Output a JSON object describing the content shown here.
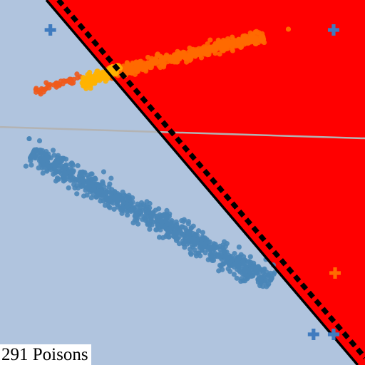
{
  "caption": "291 Poisons",
  "chart_data": {
    "type": "scatter",
    "title": "",
    "xlabel": "",
    "ylabel": "",
    "xlim": [
      0,
      1
    ],
    "ylim": [
      0,
      1
    ],
    "grid": false,
    "legend": "none",
    "regions": [
      {
        "name": "class-0-region",
        "color": "#b0c4de"
      },
      {
        "name": "class-1-region",
        "color": "#ff0000"
      }
    ],
    "decision_boundaries": [
      {
        "name": "clean-boundary",
        "style": "solid",
        "color": "#000000",
        "points": [
          [
            0.127,
            1.0
          ],
          [
            0.98,
            0.0
          ]
        ]
      },
      {
        "name": "poisoned-boundary",
        "style": "dashed",
        "color": "#000000",
        "points": [
          [
            0.16,
            1.0
          ],
          [
            1.0,
            0.02
          ]
        ]
      },
      {
        "name": "reference-line",
        "style": "solid",
        "color": "#b3b3b3",
        "points": [
          [
            0.0,
            0.652
          ],
          [
            1.0,
            0.621
          ]
        ]
      }
    ],
    "clusters": [
      {
        "name": "blue-cluster",
        "color": "#4a86b8",
        "count": 900,
        "from": [
          0.09,
          0.58
        ],
        "to": [
          0.74,
          0.23
        ],
        "spread": 0.022,
        "extra": [
          [
            0.08,
            0.62
          ],
          [
            0.1,
            0.59
          ]
        ]
      },
      {
        "name": "orange-cluster",
        "color": "#ff6a00",
        "count": 450,
        "from": [
          0.3,
          0.8
        ],
        "to": [
          0.72,
          0.9
        ],
        "spread": 0.012,
        "extra": [
          [
            0.79,
            0.92
          ],
          [
            0.7,
            0.88
          ]
        ]
      },
      {
        "name": "poison-orange-tail",
        "color": "#f05a1c",
        "count": 45,
        "from": [
          0.09,
          0.745
        ],
        "to": [
          0.22,
          0.79
        ],
        "spread": 0.008,
        "extra": []
      },
      {
        "name": "poison-yellow",
        "color": "#ffb300",
        "count": 110,
        "from": [
          0.225,
          0.77
        ],
        "to": [
          0.33,
          0.815
        ],
        "spread": 0.011,
        "extra": []
      }
    ],
    "markers": [
      {
        "name": "marker-top-left",
        "x": 0.138,
        "y": 0.918,
        "color": "#3f7bbf"
      },
      {
        "name": "marker-top-right",
        "x": 0.914,
        "y": 0.918,
        "color": "#3f7bbf"
      },
      {
        "name": "marker-right-middle",
        "x": 0.918,
        "y": 0.252,
        "color": "#ff6a00"
      },
      {
        "name": "marker-bottom-a",
        "x": 0.859,
        "y": 0.084,
        "color": "#3f7bbf"
      },
      {
        "name": "marker-bottom-b",
        "x": 0.914,
        "y": 0.084,
        "color": "#3f7bbf"
      }
    ]
  }
}
